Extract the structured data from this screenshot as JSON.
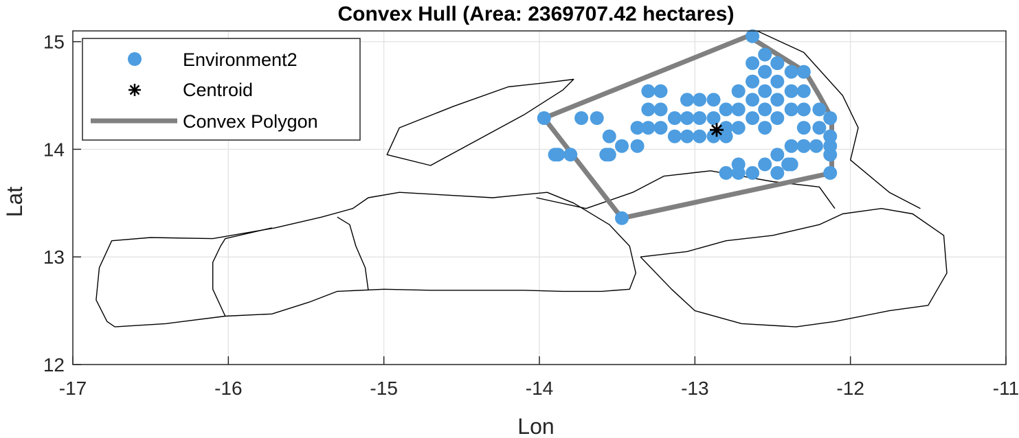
{
  "chart_data": {
    "type": "scatter",
    "title": "Convex Hull (Area: 2369707.42 hectares)",
    "xlabel": "Lon",
    "ylabel": "Lat",
    "xlim": [
      -17,
      -11
    ],
    "ylim": [
      12,
      15.1
    ],
    "xticks": [
      -17,
      -16,
      -15,
      -14,
      -13,
      -12,
      -11
    ],
    "xtick_labels": [
      "-17",
      "-16",
      "-15",
      "-14",
      "-13",
      "-12",
      "-11"
    ],
    "yticks": [
      12,
      13,
      14,
      15
    ],
    "ytick_labels": [
      "12",
      "13",
      "14",
      "15"
    ],
    "grid": true,
    "legend_position": "top-left",
    "colors": {
      "points": "#4d9de0",
      "hull": "#808080",
      "boundary": "#000000",
      "centroid": "#000000"
    },
    "series": [
      {
        "name": "Environment2",
        "kind": "points",
        "x": [
          -13.97,
          -13.8,
          -13.73,
          -13.63,
          -13.55,
          -13.55,
          -13.47,
          -13.37,
          -13.37,
          -13.3,
          -13.3,
          -13.3,
          -13.22,
          -13.22,
          -13.22,
          -13.13,
          -13.13,
          -13.05,
          -13.05,
          -13.05,
          -12.97,
          -12.97,
          -12.97,
          -12.88,
          -12.88,
          -12.88,
          -12.8,
          -12.8,
          -12.8,
          -12.72,
          -12.72,
          -12.72,
          -12.72,
          -12.63,
          -12.63,
          -12.63,
          -12.63,
          -12.63,
          -12.55,
          -12.55,
          -12.55,
          -12.55,
          -12.55,
          -12.47,
          -12.47,
          -12.47,
          -12.47,
          -12.47,
          -12.38,
          -12.38,
          -12.38,
          -12.38,
          -12.38,
          -12.3,
          -12.3,
          -12.3,
          -12.3,
          -12.2,
          -12.2,
          -12.13,
          -12.13,
          -12.13,
          -12.13,
          -12.13,
          -13.9,
          -13.47,
          -13.88,
          -13.57,
          -12.8,
          -12.72,
          -12.63,
          -12.55,
          -12.47,
          -12.4,
          -12.3,
          -12.22,
          -12.3,
          -12.47,
          -12.55,
          -12.63
        ],
        "y": [
          14.29,
          13.95,
          14.29,
          14.29,
          14.12,
          13.95,
          14.03,
          14.03,
          14.2,
          14.2,
          14.37,
          14.54,
          14.2,
          14.37,
          14.54,
          14.12,
          14.29,
          14.12,
          14.29,
          14.46,
          14.12,
          14.29,
          14.46,
          14.12,
          14.29,
          14.46,
          14.2,
          14.37,
          14.12,
          14.54,
          14.37,
          14.2,
          13.86,
          14.29,
          14.46,
          14.63,
          14.8,
          15.05,
          14.54,
          14.37,
          14.2,
          14.72,
          14.88,
          14.46,
          14.29,
          14.63,
          14.8,
          13.95,
          14.37,
          14.54,
          14.72,
          14.03,
          13.86,
          14.54,
          14.37,
          14.2,
          14.03,
          14.37,
          14.2,
          14.29,
          14.12,
          13.95,
          13.78,
          14.03,
          13.95,
          13.36,
          13.95,
          13.95,
          13.78,
          13.78,
          13.78,
          13.86,
          13.78,
          13.86,
          14.03,
          14.03,
          14.72,
          14.8,
          14.72,
          14.63
        ]
      },
      {
        "name": "Centroid",
        "kind": "marker",
        "x": [
          -12.86
        ],
        "y": [
          14.18
        ]
      },
      {
        "name": "Convex Polygon",
        "kind": "polygon",
        "x": [
          -13.97,
          -12.66,
          -12.6,
          -12.29,
          -12.2,
          -12.12,
          -12.12,
          -13.47,
          -13.97
        ],
        "y": [
          14.29,
          15.05,
          15.0,
          14.72,
          14.5,
          14.29,
          13.78,
          13.36,
          14.29
        ]
      }
    ],
    "boundaries": [
      {
        "x": [
          -16.73,
          -16.4,
          -16.02,
          -15.72,
          -15.48,
          -15.3,
          -15.0,
          -14.7,
          -14.4,
          -14.1,
          -13.85,
          -13.6,
          -13.42,
          -13.38,
          -13.42,
          -13.55,
          -13.78,
          -13.95,
          -14.3,
          -14.9,
          -15.1,
          -15.2,
          -15.4,
          -15.7,
          -16.1,
          -16.5,
          -16.75,
          -16.83,
          -16.85,
          -16.78,
          -16.73
        ],
        "y": [
          12.35,
          12.38,
          12.45,
          12.47,
          12.58,
          12.68,
          12.7,
          12.69,
          12.69,
          12.69,
          12.68,
          12.68,
          12.7,
          12.85,
          13.1,
          13.3,
          13.5,
          13.6,
          13.55,
          13.6,
          13.55,
          13.45,
          13.37,
          13.27,
          13.17,
          13.18,
          13.15,
          12.9,
          12.6,
          12.4,
          12.35
        ]
      },
      {
        "x": [
          -16.02,
          -16.1,
          -16.1,
          -16.05,
          -16.02,
          -15.72
        ],
        "y": [
          12.45,
          12.7,
          12.95,
          13.1,
          13.17,
          13.27
        ]
      },
      {
        "x": [
          -15.1,
          -15.12,
          -15.18,
          -15.22,
          -15.3
        ],
        "y": [
          12.69,
          12.9,
          13.1,
          13.3,
          13.37
        ]
      },
      {
        "x": [
          -14.1,
          -13.85,
          -13.78,
          -13.95,
          -14.2,
          -14.55,
          -14.9,
          -14.98,
          -14.7,
          -14.1
        ],
        "y": [
          14.32,
          14.55,
          14.65,
          14.62,
          14.58,
          14.4,
          14.2,
          13.95,
          13.85,
          14.32
        ]
      },
      {
        "x": [
          -13.35,
          -13.05,
          -12.8,
          -12.5,
          -12.2,
          -12.05,
          -11.8,
          -11.6,
          -11.4,
          -11.38,
          -11.5,
          -11.75,
          -12.1,
          -12.35,
          -12.7,
          -13.0,
          -13.15,
          -13.35
        ],
        "y": [
          13.0,
          13.05,
          13.15,
          13.2,
          13.3,
          13.4,
          13.45,
          13.4,
          13.2,
          12.85,
          12.55,
          12.5,
          12.4,
          12.35,
          12.38,
          12.5,
          12.7,
          13.0
        ]
      },
      {
        "x": [
          -12.6,
          -12.3,
          -12.05,
          -11.95,
          -12.0,
          -11.75,
          -11.55
        ],
        "y": [
          15.1,
          14.9,
          14.5,
          14.2,
          13.9,
          13.6,
          13.45
        ]
      },
      {
        "x": [
          -14.02,
          -13.7,
          -13.4,
          -13.2,
          -12.9,
          -12.7,
          -12.5,
          -12.2,
          -12.1
        ],
        "y": [
          13.55,
          13.45,
          13.6,
          13.75,
          13.8,
          13.75,
          13.7,
          13.65,
          13.45
        ]
      }
    ]
  }
}
